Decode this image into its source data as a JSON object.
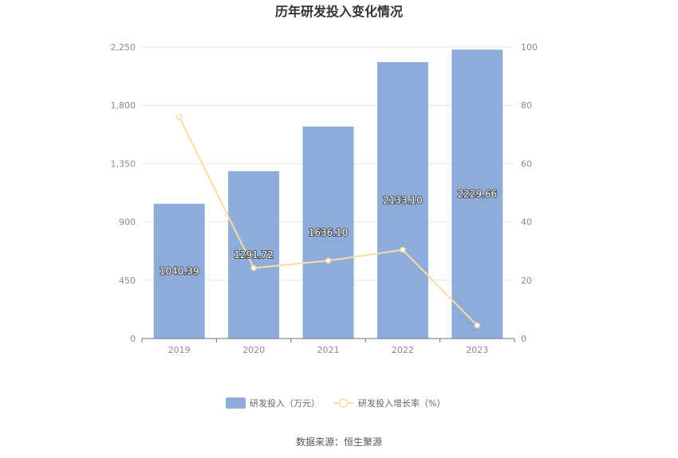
{
  "chart_data": {
    "type": "bar",
    "title": "历年研发投入变化情况",
    "categories": [
      "2019",
      "2020",
      "2021",
      "2022",
      "2023"
    ],
    "series": [
      {
        "name": "研发投入（万元）",
        "type": "bar",
        "axis": "left",
        "color": "#8eacda",
        "values": [
          1040.39,
          1291.72,
          1636.1,
          2133.1,
          2229.66
        ],
        "labels": [
          "1040.39",
          "1291.72",
          "1636.10",
          "2133.10",
          "2229.66"
        ]
      },
      {
        "name": "研发投入增长率（%）",
        "type": "line",
        "axis": "right",
        "color": "#f9dca1",
        "values": [
          76.0,
          24.2,
          26.7,
          30.4,
          4.5
        ]
      }
    ],
    "y_left": {
      "min": 0,
      "max": 2250,
      "ticks": [
        "0",
        "450",
        "900",
        "1,350",
        "1,800",
        "2,250"
      ]
    },
    "y_right": {
      "min": 0,
      "max": 100,
      "ticks": [
        "0",
        "20",
        "40",
        "60",
        "80",
        "100"
      ]
    },
    "grid": true,
    "legend_position": "bottom"
  },
  "source": "数据来源：恒生聚源"
}
